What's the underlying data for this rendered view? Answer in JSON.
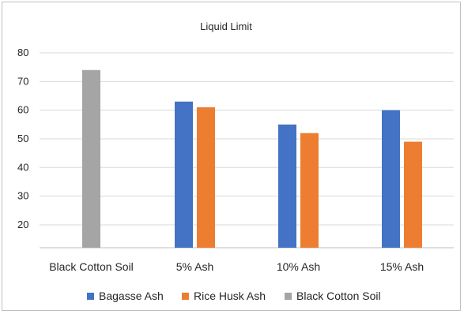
{
  "chart_data": {
    "type": "bar",
    "title": "Liquid Limit",
    "xlabel": "",
    "ylabel": "",
    "categories": [
      "Black Cotton  Soil",
      "5% Ash",
      "10% Ash",
      "15% Ash"
    ],
    "series": [
      {
        "name": "Bagasse Ash",
        "color": "#4472c4",
        "values": [
          null,
          63,
          55,
          60
        ]
      },
      {
        "name": "Rice Husk Ash",
        "color": "#ed7d31",
        "values": [
          null,
          61,
          52,
          49
        ]
      },
      {
        "name": "Black Cotton Soil",
        "color": "#a5a5a5",
        "values": [
          74,
          null,
          null,
          null
        ]
      }
    ],
    "yticks": [
      20,
      30,
      40,
      50,
      60,
      70,
      80
    ],
    "ylim": [
      12,
      80
    ],
    "grid": true,
    "legend_position": "bottom"
  }
}
